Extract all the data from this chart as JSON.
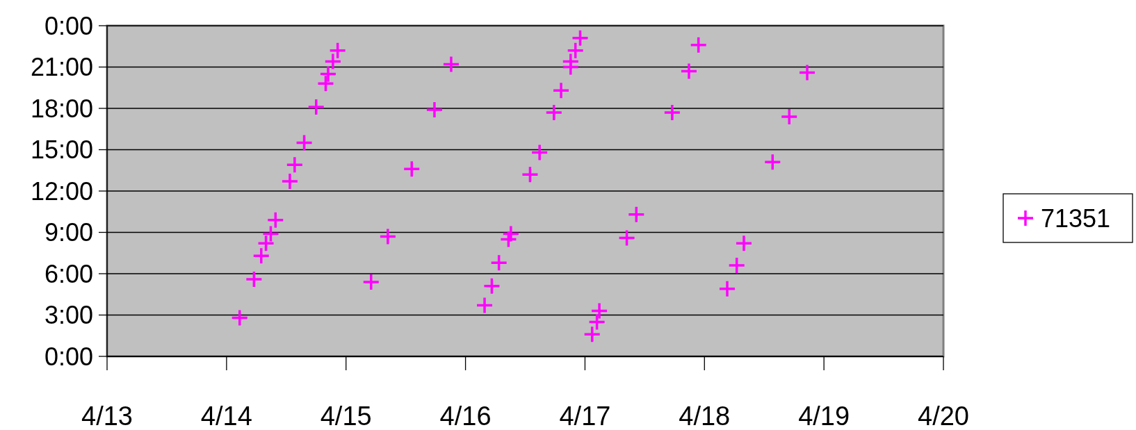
{
  "chart_data": {
    "type": "scatter",
    "marker": "cross",
    "grid": "y",
    "legend": "right",
    "xlim": [
      "--04-13",
      "--04-20"
    ],
    "xticks": [
      {
        "value": "--04-13",
        "label": "4/13"
      },
      {
        "value": "--04-14",
        "label": "4/14"
      },
      {
        "value": "--04-15",
        "label": "4/15"
      },
      {
        "value": "--04-16",
        "label": "4/16"
      },
      {
        "value": "--04-17",
        "label": "4/17"
      },
      {
        "value": "--04-18",
        "label": "4/18"
      },
      {
        "value": "--04-19",
        "label": "4/19"
      },
      {
        "value": "--04-20",
        "label": "4/20"
      }
    ],
    "ylim": [
      0,
      24
    ],
    "yticks": [
      {
        "value": 0,
        "label": "0:00"
      },
      {
        "value": 3,
        "label": "3:00"
      },
      {
        "value": 6,
        "label": "6:00"
      },
      {
        "value": 9,
        "label": "9:00"
      },
      {
        "value": 12,
        "label": "12:00"
      },
      {
        "value": 15,
        "label": "15:00"
      },
      {
        "value": 18,
        "label": "18:00"
      },
      {
        "value": 21,
        "label": "21:00"
      },
      {
        "value": 24,
        "label": "0:00"
      }
    ],
    "series": [
      {
        "name": "71351",
        "color": "#ff00ff",
        "x": [
          "--04-14T02:38",
          "--04-14T05:31",
          "--04-14T06:58",
          "--04-14T07:55",
          "--04-14T08:53",
          "--04-14T09:50",
          "--04-14T12:43",
          "--04-14T13:41",
          "--04-14T15:36",
          "--04-14T18:00",
          "--04-14T19:55",
          "--04-14T20:24",
          "--04-14T21:22",
          "--04-14T22:19",
          "--04-15T05:02",
          "--04-15T08:24",
          "--04-15T13:12",
          "--04-15T17:46",
          "--04-15T21:07",
          "--04-16T03:50",
          "--04-16T05:17",
          "--04-16T06:43",
          "--04-16T08:38",
          "--04-16T09:07",
          "--04-16T12:58",
          "--04-16T14:53",
          "--04-16T17:46",
          "--04-16T19:12",
          "--04-16T21:07",
          "--04-16T21:07",
          "--04-16T22:05",
          "--04-16T23:02",
          "--04-17T01:26",
          "--04-17T02:24",
          "--04-17T02:53",
          "--04-17T08:24",
          "--04-17T10:19",
          "--04-17T17:31",
          "--04-17T20:53",
          "--04-17T22:48",
          "--04-18T04:34",
          "--04-18T06:29",
          "--04-18T07:55",
          "--04-18T13:41",
          "--04-18T17:02",
          "--04-18T20:38"
        ],
        "values": [
          2.8,
          5.6,
          7.3,
          8.2,
          8.9,
          9.9,
          12.7,
          13.9,
          15.5,
          18.1,
          19.8,
          20.5,
          21.4,
          22.2,
          5.4,
          8.7,
          13.6,
          17.9,
          21.2,
          3.7,
          5.1,
          6.8,
          8.5,
          8.9,
          13.2,
          14.8,
          17.7,
          19.3,
          21,
          21.4,
          22.2,
          23.1,
          1.6,
          2.5,
          3.3,
          8.6,
          10.3,
          17.7,
          20.7,
          22.6,
          4.9,
          6.6,
          8.2,
          14.1,
          17.4,
          20.6
        ]
      }
    ]
  }
}
